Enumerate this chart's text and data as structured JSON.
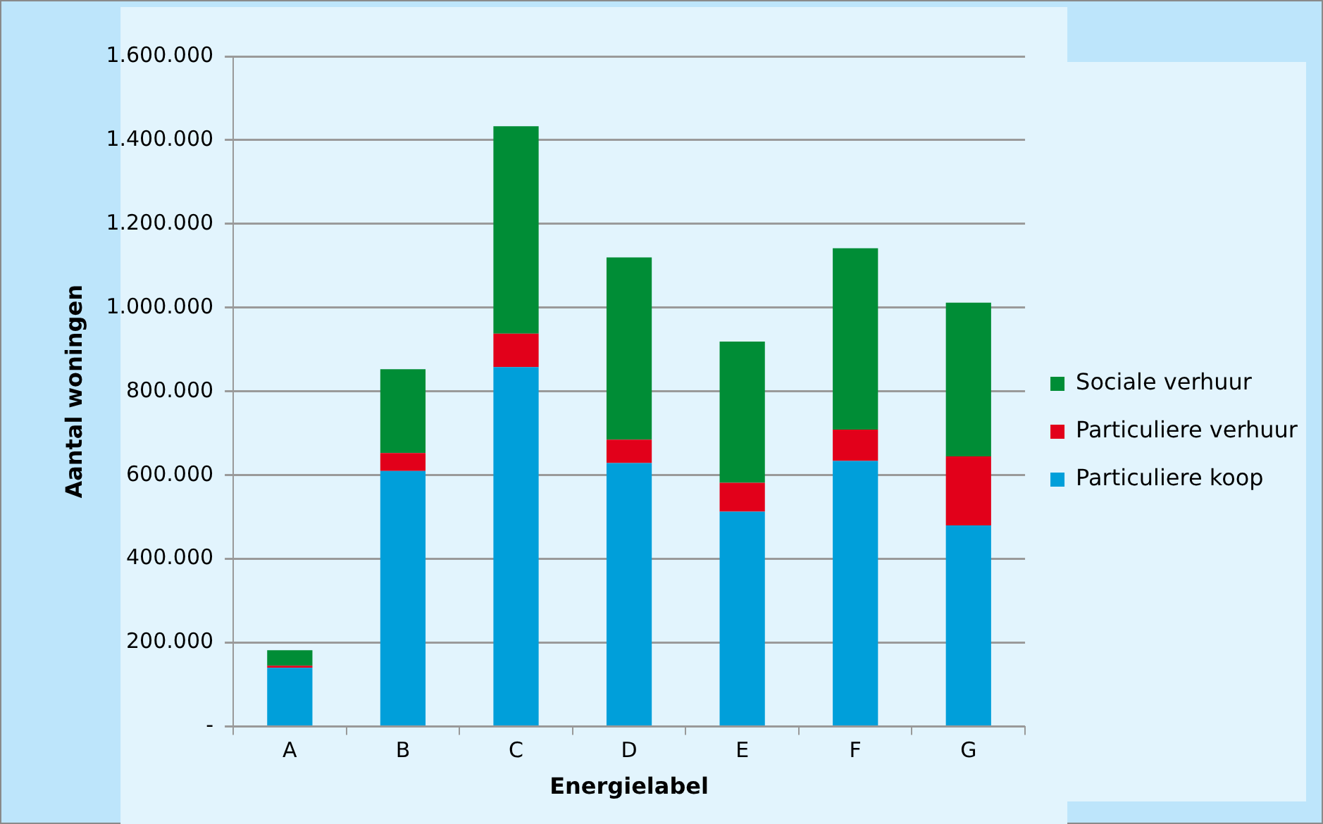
{
  "chart_data": {
    "type": "bar",
    "stacked": true,
    "xlabel": "Energielabel",
    "ylabel": "Aantal woningen",
    "categories": [
      "A",
      "B",
      "C",
      "D",
      "E",
      "F",
      "G"
    ],
    "series": [
      {
        "name": "Particuliere koop",
        "color": "#009fda",
        "values": [
          140000,
          610000,
          858000,
          629000,
          513000,
          634000,
          480000
        ]
      },
      {
        "name": "Particuliere verhuur",
        "color": "#e2001a",
        "values": [
          5000,
          43000,
          80000,
          56000,
          69000,
          75000,
          165000
        ]
      },
      {
        "name": "Sociale verhuur",
        "color": "#008d36",
        "values": [
          37000,
          200000,
          495000,
          435000,
          337000,
          433000,
          367000
        ]
      }
    ],
    "ylim": [
      0,
      1600000
    ],
    "yticks": [
      {
        "value": 0,
        "label": "-"
      },
      {
        "value": 200000,
        "label": "200.000"
      },
      {
        "value": 400000,
        "label": "400.000"
      },
      {
        "value": 600000,
        "label": "600.000"
      },
      {
        "value": 800000,
        "label": "800.000"
      },
      {
        "value": 1000000,
        "label": "1.000.000"
      },
      {
        "value": 1200000,
        "label": "1.200.000"
      },
      {
        "value": 1400000,
        "label": "1.400.000"
      },
      {
        "value": 1600000,
        "label": "1.600.000"
      }
    ],
    "grid": "y",
    "legend": "right"
  }
}
